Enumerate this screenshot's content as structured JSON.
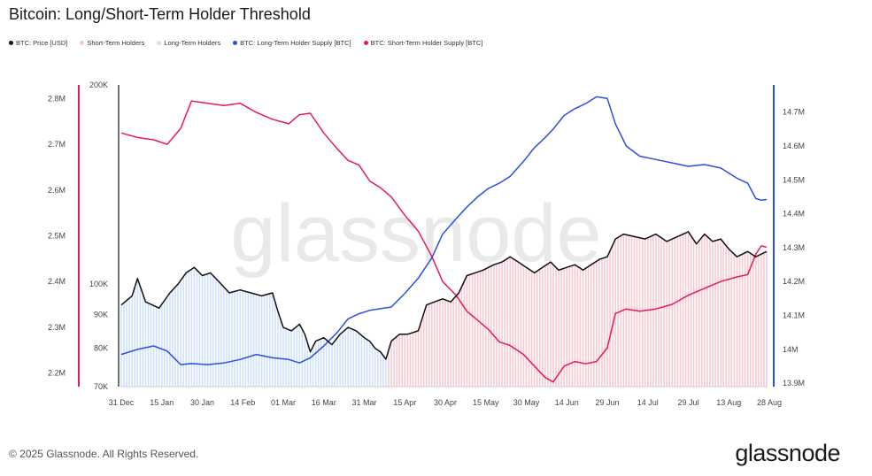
{
  "chart_data": {
    "type": "line",
    "title": "Bitcoin: Long/Short-Term Holder Threshold",
    "watermark": "glassnode",
    "legend": {
      "placement": "top-left",
      "items": [
        {
          "label": "BTC: Price [USD]",
          "color": "#111111"
        },
        {
          "label": "Short-Term Holders",
          "color": "#f7c9d3"
        },
        {
          "label": "Long-Term Holders",
          "color": "#cfe0fb"
        },
        {
          "label": "BTC: Long-Term Holder Supply [BTC]",
          "color": "#2c4fe0"
        },
        {
          "label": "BTC: Short-Term Holder Supply [BTC]",
          "color": "#e8195a"
        }
      ]
    },
    "x_ticks": [
      "31 Dec",
      "15 Jan",
      "30 Jan",
      "14 Feb",
      "01 Mar",
      "16 Mar",
      "31 Mar",
      "15 Apr",
      "30 Apr",
      "15 May",
      "30 May",
      "14 Jun",
      "29 Jun",
      "14 Jul",
      "29 Jul",
      "13 Aug",
      "28 Aug"
    ],
    "axes": {
      "sth_supply": {
        "side": "left-outer",
        "ticks": [
          "2.2M",
          "2.3M",
          "2.4M",
          "2.5M",
          "2.6M",
          "2.7M",
          "2.8M"
        ],
        "range": [
          2170000,
          2830000
        ],
        "color": "#e8195a"
      },
      "price": {
        "side": "left-inner",
        "ticks": [
          "70K",
          "80K",
          "90K",
          "100K",
          "200K"
        ],
        "scale": "log",
        "range": [
          70000,
          200000
        ],
        "color": "#111111"
      },
      "lth_supply": {
        "side": "right",
        "ticks": [
          "13.9M",
          "14M",
          "14.1M",
          "14.2M",
          "14.3M",
          "14.4M",
          "14.5M",
          "14.6M",
          "14.7M"
        ],
        "range": [
          13890000,
          14780000
        ],
        "color": "#2c4fe0"
      }
    },
    "regime_switch_day": 99,
    "series": [
      {
        "name": "BTC: Short-Term Holder Supply [BTC]",
        "axis": "sth_supply",
        "color": "#e8195a",
        "points": [
          [
            0,
            2725000
          ],
          [
            6,
            2715000
          ],
          [
            12,
            2710000
          ],
          [
            17,
            2700000
          ],
          [
            22,
            2735000
          ],
          [
            26,
            2795000
          ],
          [
            32,
            2790000
          ],
          [
            38,
            2785000
          ],
          [
            44,
            2790000
          ],
          [
            50,
            2770000
          ],
          [
            56,
            2755000
          ],
          [
            62,
            2745000
          ],
          [
            66,
            2765000
          ],
          [
            70,
            2768000
          ],
          [
            75,
            2725000
          ],
          [
            80,
            2690000
          ],
          [
            84,
            2665000
          ],
          [
            88,
            2655000
          ],
          [
            92,
            2620000
          ],
          [
            96,
            2605000
          ],
          [
            100,
            2585000
          ],
          [
            105,
            2545000
          ],
          [
            110,
            2510000
          ],
          [
            115,
            2455000
          ],
          [
            119,
            2400000
          ],
          [
            124,
            2370000
          ],
          [
            128,
            2335000
          ],
          [
            132,
            2315000
          ],
          [
            136,
            2295000
          ],
          [
            140,
            2268000
          ],
          [
            144,
            2260000
          ],
          [
            149,
            2240000
          ],
          [
            153,
            2215000
          ],
          [
            157,
            2190000
          ],
          [
            160,
            2180000
          ],
          [
            164,
            2215000
          ],
          [
            168,
            2225000
          ],
          [
            172,
            2220000
          ],
          [
            176,
            2225000
          ],
          [
            180,
            2255000
          ],
          [
            183,
            2330000
          ],
          [
            187,
            2340000
          ],
          [
            192,
            2335000
          ],
          [
            198,
            2340000
          ],
          [
            204,
            2350000
          ],
          [
            210,
            2370000
          ],
          [
            216,
            2385000
          ],
          [
            222,
            2400000
          ],
          [
            228,
            2410000
          ],
          [
            232,
            2415000
          ],
          [
            235,
            2460000
          ],
          [
            237,
            2478000
          ],
          [
            239,
            2475000
          ]
        ]
      },
      {
        "name": "BTC: Long-Term Holder Supply [BTC]",
        "axis": "lth_supply",
        "color": "#2c4fe0",
        "points": [
          [
            0,
            13985000
          ],
          [
            6,
            14000000
          ],
          [
            12,
            14010000
          ],
          [
            17,
            13995000
          ],
          [
            22,
            13955000
          ],
          [
            26,
            13958000
          ],
          [
            32,
            13955000
          ],
          [
            38,
            13960000
          ],
          [
            44,
            13970000
          ],
          [
            50,
            13985000
          ],
          [
            56,
            13975000
          ],
          [
            62,
            13970000
          ],
          [
            66,
            13960000
          ],
          [
            70,
            13975000
          ],
          [
            75,
            14010000
          ],
          [
            80,
            14050000
          ],
          [
            84,
            14090000
          ],
          [
            88,
            14105000
          ],
          [
            92,
            14115000
          ],
          [
            96,
            14120000
          ],
          [
            100,
            14125000
          ],
          [
            105,
            14165000
          ],
          [
            110,
            14210000
          ],
          [
            115,
            14270000
          ],
          [
            119,
            14340000
          ],
          [
            124,
            14385000
          ],
          [
            128,
            14420000
          ],
          [
            132,
            14450000
          ],
          [
            136,
            14475000
          ],
          [
            140,
            14490000
          ],
          [
            144,
            14510000
          ],
          [
            149,
            14555000
          ],
          [
            153,
            14595000
          ],
          [
            157,
            14625000
          ],
          [
            160,
            14650000
          ],
          [
            164,
            14690000
          ],
          [
            168,
            14710000
          ],
          [
            172,
            14725000
          ],
          [
            176,
            14745000
          ],
          [
            180,
            14740000
          ],
          [
            183,
            14665000
          ],
          [
            187,
            14600000
          ],
          [
            192,
            14570000
          ],
          [
            198,
            14560000
          ],
          [
            204,
            14550000
          ],
          [
            210,
            14540000
          ],
          [
            216,
            14545000
          ],
          [
            222,
            14535000
          ],
          [
            228,
            14505000
          ],
          [
            232,
            14490000
          ],
          [
            235,
            14445000
          ],
          [
            237,
            14440000
          ],
          [
            239,
            14442000
          ]
        ]
      },
      {
        "name": "BTC: Price [USD]",
        "axis": "price",
        "color": "#111111",
        "points": [
          [
            0,
            93000
          ],
          [
            4,
            96000
          ],
          [
            6,
            102000
          ],
          [
            9,
            94000
          ],
          [
            14,
            92000
          ],
          [
            18,
            97000
          ],
          [
            21,
            100000
          ],
          [
            24,
            104000
          ],
          [
            27,
            106000
          ],
          [
            30,
            103000
          ],
          [
            33,
            104000
          ],
          [
            36,
            101000
          ],
          [
            40,
            97000
          ],
          [
            44,
            98000
          ],
          [
            48,
            97000
          ],
          [
            52,
            96000
          ],
          [
            56,
            97000
          ],
          [
            58,
            91000
          ],
          [
            60,
            86000
          ],
          [
            63,
            85000
          ],
          [
            66,
            87000
          ],
          [
            68,
            84000
          ],
          [
            70,
            79000
          ],
          [
            72,
            82000
          ],
          [
            75,
            83000
          ],
          [
            78,
            81000
          ],
          [
            81,
            84000
          ],
          [
            84,
            86000
          ],
          [
            87,
            85000
          ],
          [
            90,
            83000
          ],
          [
            92,
            82000
          ],
          [
            94,
            80000
          ],
          [
            96,
            79000
          ],
          [
            98,
            77000
          ],
          [
            100,
            82000
          ],
          [
            103,
            84000
          ],
          [
            106,
            84000
          ],
          [
            110,
            85000
          ],
          [
            113,
            93000
          ],
          [
            116,
            94000
          ],
          [
            119,
            95000
          ],
          [
            122,
            94000
          ],
          [
            125,
            97000
          ],
          [
            128,
            103000
          ],
          [
            131,
            104000
          ],
          [
            134,
            105000
          ],
          [
            138,
            107000
          ],
          [
            141,
            108000
          ],
          [
            144,
            110000
          ],
          [
            147,
            108000
          ],
          [
            150,
            106000
          ],
          [
            153,
            104000
          ],
          [
            156,
            106000
          ],
          [
            159,
            108000
          ],
          [
            162,
            105000
          ],
          [
            165,
            106000
          ],
          [
            168,
            107000
          ],
          [
            171,
            105000
          ],
          [
            174,
            107000
          ],
          [
            177,
            109000
          ],
          [
            180,
            110000
          ],
          [
            183,
            117000
          ],
          [
            186,
            119000
          ],
          [
            190,
            118000
          ],
          [
            194,
            117000
          ],
          [
            198,
            119000
          ],
          [
            202,
            116000
          ],
          [
            206,
            118000
          ],
          [
            210,
            120000
          ],
          [
            213,
            115000
          ],
          [
            216,
            119000
          ],
          [
            219,
            116000
          ],
          [
            222,
            117000
          ],
          [
            225,
            113000
          ],
          [
            228,
            110000
          ],
          [
            232,
            112000
          ],
          [
            235,
            110000
          ],
          [
            237,
            111000
          ],
          [
            239,
            112000
          ]
        ]
      }
    ]
  },
  "footer": {
    "copyright": "© 2025 Glassnode. All Rights Reserved.",
    "brand": "glassnode"
  }
}
